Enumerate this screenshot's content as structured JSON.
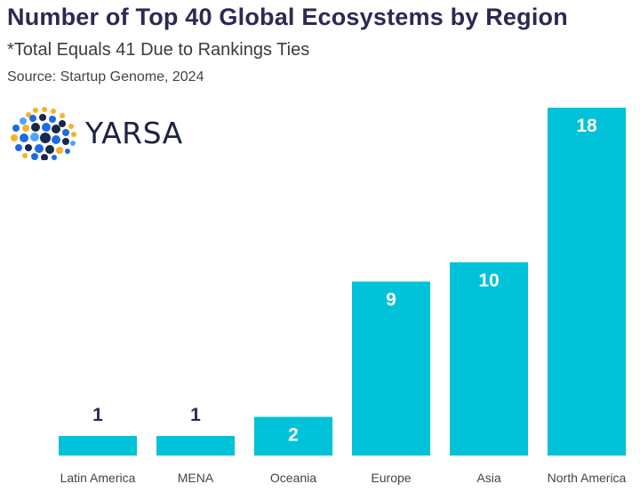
{
  "header": {
    "title": "Number of Top 40 Global Ecosystems by Region",
    "subtitle": "*Total Equals 41 Due to Rankings Ties",
    "source": "Source: Startup Genome, 2024"
  },
  "logo": {
    "text": "YARSA",
    "icon": "dotted-globe-icon"
  },
  "colors": {
    "bar": "#00c2d9",
    "title": "#2a2a52",
    "label_inside": "#ffffff",
    "label_outside": "#2a2a52",
    "axis_text": "#444444",
    "logo_dots": [
      "#1d6ae5",
      "#f5b324",
      "#18284a",
      "#4ea3ff"
    ]
  },
  "chart_data": {
    "type": "bar",
    "categories": [
      "Latin America",
      "MENA",
      "Oceania",
      "Europe",
      "Asia",
      "North America"
    ],
    "values": [
      1,
      1,
      2,
      9,
      10,
      18
    ],
    "title": "Number of Top 40 Global Ecosystems by Region",
    "subtitle": "*Total Equals 41 Due to Rankings Ties",
    "xlabel": "",
    "ylabel": "",
    "ylim": [
      0,
      18
    ],
    "grid": false,
    "legend": "none"
  }
}
